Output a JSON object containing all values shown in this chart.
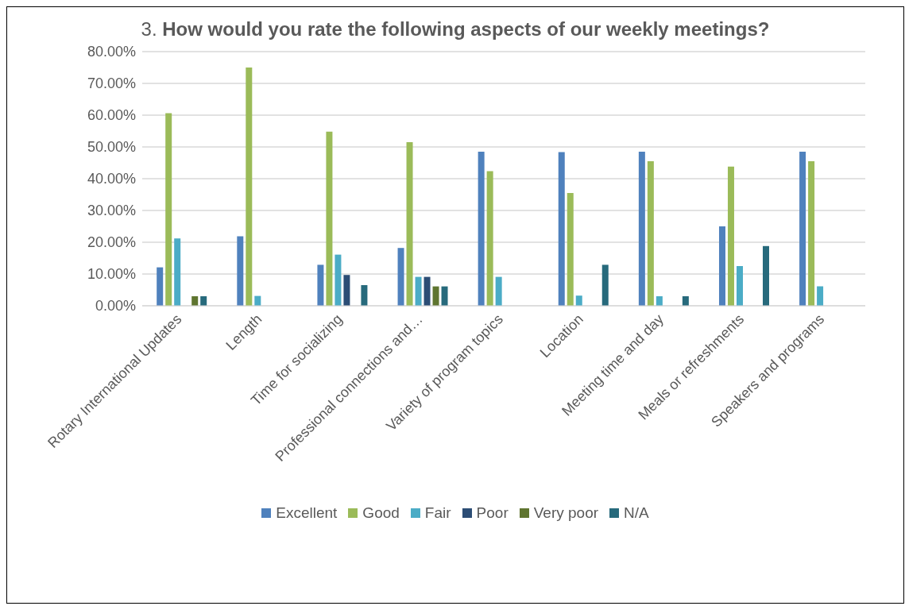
{
  "chart_data": {
    "type": "bar",
    "title": "3. How would you rate the following aspects of our weekly meetings?",
    "categories": [
      "Rotary International Updates",
      "Length",
      "Time for socializing",
      "Professional connections and…",
      "Variety of program topics",
      "Location",
      "Meeting time and day",
      "Meals or refreshments",
      "Speakers and programs"
    ],
    "series": [
      {
        "name": "Excellent",
        "color": "#4f81bd",
        "values": [
          12.1,
          21.9,
          12.9,
          18.2,
          48.5,
          48.4,
          48.5,
          25.0,
          48.5
        ]
      },
      {
        "name": "Good",
        "color": "#9bbb59",
        "values": [
          60.6,
          75.0,
          54.8,
          51.5,
          42.4,
          35.5,
          45.5,
          43.8,
          45.5
        ]
      },
      {
        "name": "Fair",
        "color": "#4bacc6",
        "values": [
          21.2,
          3.1,
          16.1,
          9.1,
          9.1,
          3.2,
          3.0,
          12.5,
          6.1
        ]
      },
      {
        "name": "Poor",
        "color": "#2c4d75",
        "values": [
          0,
          0,
          9.7,
          9.1,
          0,
          0,
          0,
          0,
          0
        ]
      },
      {
        "name": "Very poor",
        "color": "#5f7530",
        "values": [
          3.0,
          0,
          0,
          6.1,
          0,
          0,
          0,
          0,
          0
        ]
      },
      {
        "name": "N/A",
        "color": "#276a7c",
        "values": [
          3.0,
          0,
          6.5,
          6.1,
          0,
          12.9,
          3.0,
          18.8,
          0
        ]
      }
    ],
    "ylim": [
      0,
      80
    ],
    "yticks": [
      {
        "value": 0,
        "label": "0.00%"
      },
      {
        "value": 10,
        "label": "10.00%"
      },
      {
        "value": 20,
        "label": "20.00%"
      },
      {
        "value": 30,
        "label": "30.00%"
      },
      {
        "value": 40,
        "label": "40.00%"
      },
      {
        "value": 50,
        "label": "50.00%"
      },
      {
        "value": 60,
        "label": "60.00%"
      },
      {
        "value": 70,
        "label": "70.00%"
      },
      {
        "value": 80,
        "label": "80.00%"
      }
    ],
    "grid": "y",
    "legend": "bottom"
  }
}
